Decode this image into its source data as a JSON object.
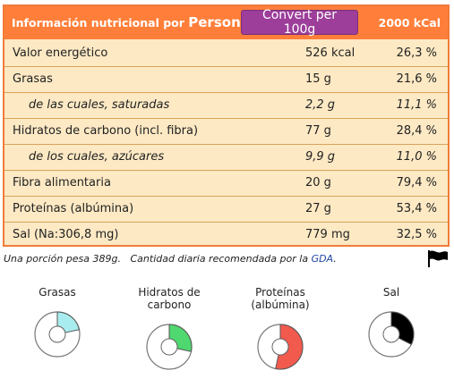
{
  "header": {
    "title_prefix": "Información nutricional por ",
    "title_unit": "Person",
    "convert_label": "Convert per 100g",
    "kcal_label": "2000 kCal"
  },
  "rows": [
    {
      "name": "Valor energético",
      "value": "526 kcal",
      "pct": "26,3 %"
    },
    {
      "name": "Grasas",
      "value": "15 g",
      "pct": "21,6 %"
    },
    {
      "name": "de las cuales, saturadas",
      "value": "2,2 g",
      "pct": "11,1 %"
    },
    {
      "name": "Hidratos de carbono (incl. fibra)",
      "value": "77 g",
      "pct": "28,4 %"
    },
    {
      "name": "de los cuales, azúcares",
      "value": "9,9 g",
      "pct": "11,0 %"
    },
    {
      "name": "Fibra alimentaria",
      "value": "20 g",
      "pct": "79,4 %"
    },
    {
      "name": "Proteínas (albúmina)",
      "value": "27 g",
      "pct": "53,4 %"
    },
    {
      "name": "Sal (Na:306,8 mg)",
      "value": "779 mg",
      "pct": "32,5 %"
    }
  ],
  "note": {
    "portion": "Una porción pesa 389g.",
    "daily": "Cantidad diaria recomendada por la",
    "gda_link": "GDA",
    "period": "."
  },
  "charts": [
    {
      "label": "Grasas",
      "fraction": 0.216,
      "color": "#a9ecef"
    },
    {
      "label": "Hidratos de carbono",
      "fraction": 0.284,
      "color": "#4fd870"
    },
    {
      "label": "Proteínas (albúmina)",
      "fraction": 0.534,
      "color": "#f25a4e"
    },
    {
      "label": "Sal",
      "fraction": 0.325,
      "color": "#000000"
    }
  ]
}
